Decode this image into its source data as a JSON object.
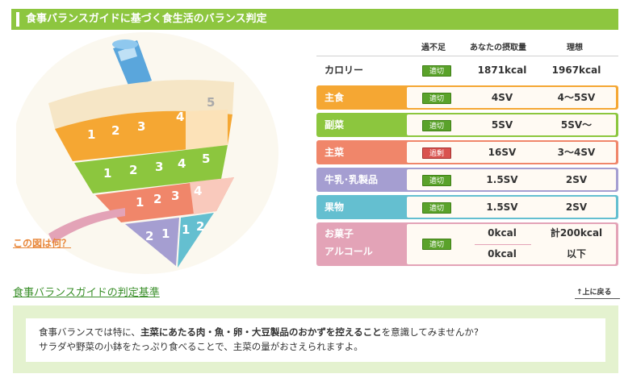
{
  "header": {
    "title": "食事バランスガイドに基づく食生活のバランス判定"
  },
  "spinner": {
    "shusyoku_numbers": [
      "1",
      "2",
      "3",
      "4",
      "5"
    ],
    "fukusai_numbers": [
      "1",
      "2",
      "3",
      "4",
      "5"
    ],
    "shusai_numbers": [
      "1",
      "2",
      "3",
      "4"
    ],
    "milk_numbers": [
      "2",
      "1"
    ],
    "fruit_numbers": [
      "1",
      "2"
    ]
  },
  "what_link": "この図は何？",
  "table": {
    "headers": {
      "judge": "過不足",
      "intake": "あなたの摂取量",
      "ideal": "理想"
    },
    "calorie": {
      "label": "カロリー",
      "judge": "適切",
      "intake": "1871kcal",
      "ideal": "1967kcal"
    },
    "rows": [
      {
        "label": "主食",
        "judge": "適切",
        "intake": "4SV",
        "ideal": "4〜5SV",
        "color": "#f5a733"
      },
      {
        "label": "副菜",
        "judge": "適切",
        "intake": "5SV",
        "ideal": "5SV〜",
        "color": "#8cc63e"
      },
      {
        "label": "主菜",
        "judge": "過剰",
        "intake": "16SV",
        "ideal": "3〜4SV",
        "color": "#f0866a"
      },
      {
        "label": "牛乳･乳製品",
        "judge": "適切",
        "intake": "1.5SV",
        "ideal": "2SV",
        "color": "#a59ed1"
      },
      {
        "label": "果物",
        "judge": "適切",
        "intake": "1.5SV",
        "ideal": "2SV",
        "color": "#64bfd0"
      }
    ],
    "snack": {
      "label1": "お菓子",
      "label2": "アルコール",
      "judge": "適切",
      "intake1": "0kcal",
      "intake2": "0kcal",
      "ideal1": "計200kcal",
      "ideal2": "以下",
      "color": "#e3a3b7"
    }
  },
  "section": {
    "title": "食事バランスガイドの判定基準",
    "to_top": "上に戻る"
  },
  "note": {
    "line1_pre": "食事バランスでは特に、",
    "line1_bold": "主菜にあたる肉・魚・卵・大豆製品のおかずを控えること",
    "line1_post": "を意識してみませんか?",
    "line2": "サラダや野菜の小鉢をたっぷり食べることで、主菜の量がおさえられますよ。"
  },
  "colors": {
    "header_green": "#8dc63f",
    "shusyoku": "#f5a733",
    "fukusai": "#8cc63e",
    "shusai": "#f0866a",
    "milk": "#a59ed1",
    "fruit": "#64bfd0",
    "snack": "#e3a3b7",
    "badge_ok": "#5aa22a",
    "badge_over": "#d9534f"
  }
}
